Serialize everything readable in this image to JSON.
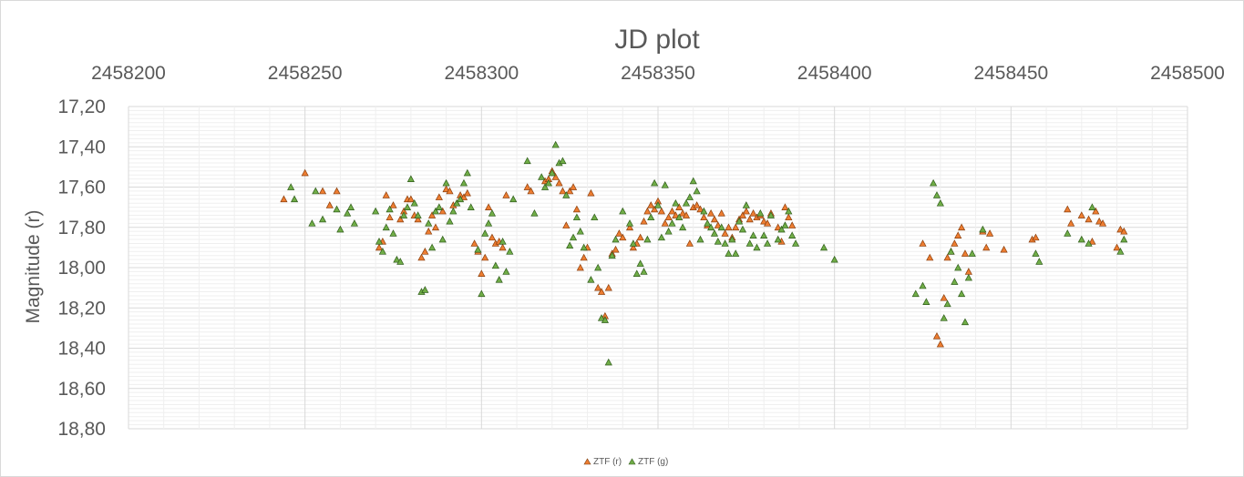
{
  "chart_data": {
    "type": "scatter",
    "title": "JD plot",
    "ylabel": "Magnitude (r)",
    "xlabel": "",
    "xlim": [
      2458200,
      2458500
    ],
    "ylim": [
      17.2,
      18.8
    ],
    "y_reversed": true,
    "x_axis_position": "top",
    "x_ticks": [
      "2458200",
      "2458250",
      "2458300",
      "2458350",
      "2458400",
      "2458450",
      "2458500"
    ],
    "x_tick_values": [
      2458200,
      2458250,
      2458300,
      2458350,
      2458400,
      2458450,
      2458500
    ],
    "y_ticks": [
      "17,20",
      "17,40",
      "17,60",
      "17,80",
      "18,00",
      "18,20",
      "18,40",
      "18,60",
      "18,80"
    ],
    "y_tick_values": [
      17.2,
      17.4,
      17.6,
      17.8,
      18.0,
      18.2,
      18.4,
      18.6,
      18.8
    ],
    "grid": true,
    "legend_position": "bottom",
    "marker": "triangle",
    "series": [
      {
        "name": "ZTF (r)",
        "color": "#ed7d31",
        "points": [
          [
            2458244,
            17.66
          ],
          [
            2458250,
            17.53
          ],
          [
            2458255,
            17.62
          ],
          [
            2458257,
            17.69
          ],
          [
            2458259,
            17.62
          ],
          [
            2458271,
            17.9
          ],
          [
            2458272,
            17.87
          ],
          [
            2458273,
            17.64
          ],
          [
            2458274,
            17.75
          ],
          [
            2458275,
            17.69
          ],
          [
            2458277,
            17.76
          ],
          [
            2458278,
            17.72
          ],
          [
            2458279,
            17.66
          ],
          [
            2458280,
            17.66
          ],
          [
            2458281,
            17.74
          ],
          [
            2458282,
            17.76
          ],
          [
            2458283,
            17.95
          ],
          [
            2458284,
            17.92
          ],
          [
            2458285,
            17.82
          ],
          [
            2458286,
            17.74
          ],
          [
            2458287,
            17.8
          ],
          [
            2458288,
            17.65
          ],
          [
            2458289,
            17.72
          ],
          [
            2458290,
            17.61
          ],
          [
            2458291,
            17.62
          ],
          [
            2458292,
            17.69
          ],
          [
            2458293,
            17.68
          ],
          [
            2458294,
            17.64
          ],
          [
            2458295,
            17.65
          ],
          [
            2458296,
            17.63
          ],
          [
            2458298,
            17.88
          ],
          [
            2458299,
            17.92
          ],
          [
            2458300,
            18.03
          ],
          [
            2458301,
            17.95
          ],
          [
            2458302,
            17.7
          ],
          [
            2458303,
            17.85
          ],
          [
            2458304,
            17.88
          ],
          [
            2458305,
            17.87
          ],
          [
            2458306,
            17.9
          ],
          [
            2458307,
            17.64
          ],
          [
            2458313,
            17.6
          ],
          [
            2458314,
            17.62
          ],
          [
            2458318,
            17.57
          ],
          [
            2458319,
            17.56
          ],
          [
            2458320,
            17.52
          ],
          [
            2458321,
            17.55
          ],
          [
            2458322,
            17.58
          ],
          [
            2458323,
            17.62
          ],
          [
            2458324,
            17.79
          ],
          [
            2458325,
            17.62
          ],
          [
            2458326,
            17.6
          ],
          [
            2458327,
            17.71
          ],
          [
            2458328,
            18.0
          ],
          [
            2458329,
            17.95
          ],
          [
            2458330,
            17.9
          ],
          [
            2458331,
            17.63
          ],
          [
            2458333,
            18.1
          ],
          [
            2458334,
            18.12
          ],
          [
            2458335,
            18.24
          ],
          [
            2458336,
            18.1
          ],
          [
            2458337,
            17.93
          ],
          [
            2458338,
            17.91
          ],
          [
            2458339,
            17.83
          ],
          [
            2458340,
            17.85
          ],
          [
            2458342,
            17.8
          ],
          [
            2458343,
            17.9
          ],
          [
            2458344,
            17.88
          ],
          [
            2458345,
            17.85
          ],
          [
            2458346,
            17.77
          ],
          [
            2458347,
            17.72
          ],
          [
            2458348,
            17.69
          ],
          [
            2458349,
            17.71
          ],
          [
            2458350,
            17.67
          ],
          [
            2458351,
            17.72
          ],
          [
            2458352,
            17.78
          ],
          [
            2458353,
            17.75
          ],
          [
            2458354,
            17.72
          ],
          [
            2458355,
            17.74
          ],
          [
            2458356,
            17.7
          ],
          [
            2458357,
            17.73
          ],
          [
            2458358,
            17.74
          ],
          [
            2458359,
            17.88
          ],
          [
            2458360,
            17.7
          ],
          [
            2458361,
            17.69
          ],
          [
            2458362,
            17.71
          ],
          [
            2458363,
            17.75
          ],
          [
            2458364,
            17.79
          ],
          [
            2458365,
            17.73
          ],
          [
            2458366,
            17.76
          ],
          [
            2458367,
            17.79
          ],
          [
            2458368,
            17.73
          ],
          [
            2458369,
            17.83
          ],
          [
            2458370,
            17.8
          ],
          [
            2458371,
            17.85
          ],
          [
            2458372,
            17.8
          ],
          [
            2458373,
            17.76
          ],
          [
            2458374,
            17.74
          ],
          [
            2458375,
            17.72
          ],
          [
            2458376,
            17.76
          ],
          [
            2458377,
            17.73
          ],
          [
            2458378,
            17.75
          ],
          [
            2458379,
            17.74
          ],
          [
            2458380,
            17.77
          ],
          [
            2458381,
            17.78
          ],
          [
            2458382,
            17.73
          ],
          [
            2458384,
            17.8
          ],
          [
            2458385,
            17.87
          ],
          [
            2458386,
            17.7
          ],
          [
            2458387,
            17.75
          ],
          [
            2458388,
            17.79
          ],
          [
            2458425,
            17.88
          ],
          [
            2458427,
            17.95
          ],
          [
            2458429,
            18.34
          ],
          [
            2458430,
            18.38
          ],
          [
            2458431,
            18.15
          ],
          [
            2458432,
            17.95
          ],
          [
            2458433,
            17.92
          ],
          [
            2458434,
            17.88
          ],
          [
            2458435,
            17.84
          ],
          [
            2458436,
            17.8
          ],
          [
            2458437,
            17.93
          ],
          [
            2458438,
            18.02
          ],
          [
            2458442,
            17.82
          ],
          [
            2458443,
            17.9
          ],
          [
            2458444,
            17.83
          ],
          [
            2458448,
            17.91
          ],
          [
            2458456,
            17.86
          ],
          [
            2458457,
            17.85
          ],
          [
            2458466,
            17.71
          ],
          [
            2458467,
            17.78
          ],
          [
            2458470,
            17.74
          ],
          [
            2458472,
            17.76
          ],
          [
            2458473,
            17.87
          ],
          [
            2458474,
            17.72
          ],
          [
            2458475,
            17.77
          ],
          [
            2458476,
            17.78
          ],
          [
            2458480,
            17.9
          ],
          [
            2458481,
            17.81
          ],
          [
            2458482,
            17.82
          ]
        ]
      },
      {
        "name": "ZTF (g)",
        "color": "#70ad47",
        "points": [
          [
            2458246,
            17.6
          ],
          [
            2458247,
            17.66
          ],
          [
            2458252,
            17.78
          ],
          [
            2458253,
            17.62
          ],
          [
            2458255,
            17.76
          ],
          [
            2458259,
            17.71
          ],
          [
            2458260,
            17.81
          ],
          [
            2458262,
            17.73
          ],
          [
            2458263,
            17.7
          ],
          [
            2458264,
            17.78
          ],
          [
            2458270,
            17.72
          ],
          [
            2458271,
            17.87
          ],
          [
            2458272,
            17.92
          ],
          [
            2458273,
            17.8
          ],
          [
            2458274,
            17.71
          ],
          [
            2458275,
            17.83
          ],
          [
            2458276,
            17.96
          ],
          [
            2458277,
            17.97
          ],
          [
            2458278,
            17.74
          ],
          [
            2458279,
            17.7
          ],
          [
            2458280,
            17.56
          ],
          [
            2458281,
            17.68
          ],
          [
            2458282,
            17.74
          ],
          [
            2458283,
            18.12
          ],
          [
            2458284,
            18.11
          ],
          [
            2458285,
            17.78
          ],
          [
            2458286,
            17.9
          ],
          [
            2458287,
            17.72
          ],
          [
            2458288,
            17.7
          ],
          [
            2458289,
            17.86
          ],
          [
            2458290,
            17.58
          ],
          [
            2458291,
            17.77
          ],
          [
            2458292,
            17.72
          ],
          [
            2458293,
            17.68
          ],
          [
            2458294,
            17.66
          ],
          [
            2458295,
            17.58
          ],
          [
            2458296,
            17.53
          ],
          [
            2458297,
            17.7
          ],
          [
            2458299,
            17.91
          ],
          [
            2458300,
            18.13
          ],
          [
            2458301,
            17.83
          ],
          [
            2458302,
            17.78
          ],
          [
            2458303,
            17.73
          ],
          [
            2458304,
            17.99
          ],
          [
            2458305,
            18.06
          ],
          [
            2458306,
            17.87
          ],
          [
            2458307,
            18.02
          ],
          [
            2458308,
            17.92
          ],
          [
            2458309,
            17.66
          ],
          [
            2458313,
            17.47
          ],
          [
            2458315,
            17.73
          ],
          [
            2458317,
            17.55
          ],
          [
            2458318,
            17.6
          ],
          [
            2458319,
            17.58
          ],
          [
            2458320,
            17.53
          ],
          [
            2458321,
            17.39
          ],
          [
            2458322,
            17.48
          ],
          [
            2458323,
            17.47
          ],
          [
            2458324,
            17.64
          ],
          [
            2458325,
            17.89
          ],
          [
            2458326,
            17.85
          ],
          [
            2458327,
            17.75
          ],
          [
            2458328,
            17.82
          ],
          [
            2458329,
            17.9
          ],
          [
            2458331,
            18.06
          ],
          [
            2458332,
            17.75
          ],
          [
            2458333,
            18.0
          ],
          [
            2458334,
            18.25
          ],
          [
            2458335,
            18.26
          ],
          [
            2458336,
            18.47
          ],
          [
            2458337,
            17.94
          ],
          [
            2458338,
            17.86
          ],
          [
            2458340,
            17.72
          ],
          [
            2458342,
            17.78
          ],
          [
            2458343,
            17.88
          ],
          [
            2458344,
            18.03
          ],
          [
            2458345,
            17.98
          ],
          [
            2458346,
            18.02
          ],
          [
            2458347,
            17.86
          ],
          [
            2458348,
            17.75
          ],
          [
            2458349,
            17.58
          ],
          [
            2458350,
            17.69
          ],
          [
            2458351,
            17.85
          ],
          [
            2458352,
            17.59
          ],
          [
            2458353,
            17.82
          ],
          [
            2458354,
            17.78
          ],
          [
            2458355,
            17.68
          ],
          [
            2458356,
            17.75
          ],
          [
            2458357,
            17.8
          ],
          [
            2458358,
            17.68
          ],
          [
            2458359,
            17.65
          ],
          [
            2458360,
            17.57
          ],
          [
            2458361,
            17.62
          ],
          [
            2458362,
            17.86
          ],
          [
            2458363,
            17.72
          ],
          [
            2458364,
            17.78
          ],
          [
            2458365,
            17.8
          ],
          [
            2458366,
            17.83
          ],
          [
            2458367,
            17.87
          ],
          [
            2458368,
            17.8
          ],
          [
            2458369,
            17.88
          ],
          [
            2458370,
            17.93
          ],
          [
            2458371,
            17.86
          ],
          [
            2458372,
            17.93
          ],
          [
            2458373,
            17.77
          ],
          [
            2458374,
            17.81
          ],
          [
            2458375,
            17.69
          ],
          [
            2458376,
            17.88
          ],
          [
            2458377,
            17.84
          ],
          [
            2458378,
            17.9
          ],
          [
            2458379,
            17.73
          ],
          [
            2458380,
            17.84
          ],
          [
            2458381,
            17.88
          ],
          [
            2458382,
            17.74
          ],
          [
            2458384,
            17.86
          ],
          [
            2458385,
            17.81
          ],
          [
            2458386,
            17.79
          ],
          [
            2458387,
            17.72
          ],
          [
            2458388,
            17.84
          ],
          [
            2458389,
            17.88
          ],
          [
            2458397,
            17.9
          ],
          [
            2458400,
            17.96
          ],
          [
            2458423,
            18.13
          ],
          [
            2458425,
            18.09
          ],
          [
            2458426,
            18.17
          ],
          [
            2458428,
            17.58
          ],
          [
            2458429,
            17.64
          ],
          [
            2458430,
            17.68
          ],
          [
            2458431,
            18.25
          ],
          [
            2458432,
            18.18
          ],
          [
            2458433,
            17.92
          ],
          [
            2458434,
            18.07
          ],
          [
            2458435,
            18.0
          ],
          [
            2458436,
            18.13
          ],
          [
            2458437,
            18.27
          ],
          [
            2458438,
            18.05
          ],
          [
            2458439,
            17.93
          ],
          [
            2458442,
            17.81
          ],
          [
            2458457,
            17.93
          ],
          [
            2458458,
            17.97
          ],
          [
            2458466,
            17.83
          ],
          [
            2458470,
            17.86
          ],
          [
            2458472,
            17.88
          ],
          [
            2458473,
            17.7
          ],
          [
            2458481,
            17.92
          ],
          [
            2458482,
            17.86
          ]
        ]
      }
    ]
  }
}
